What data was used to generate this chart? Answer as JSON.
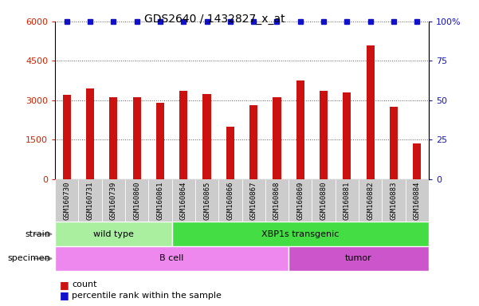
{
  "title": "GDS2640 / 1432827_x_at",
  "samples": [
    "GSM160730",
    "GSM160731",
    "GSM160739",
    "GSM160860",
    "GSM160861",
    "GSM160864",
    "GSM160865",
    "GSM160866",
    "GSM160867",
    "GSM160868",
    "GSM160869",
    "GSM160880",
    "GSM160881",
    "GSM160882",
    "GSM160883",
    "GSM160884"
  ],
  "counts": [
    3200,
    3450,
    3100,
    3100,
    2900,
    3350,
    3250,
    2000,
    2800,
    3100,
    3750,
    3350,
    3300,
    5100,
    2750,
    1350
  ],
  "ylim_left": [
    0,
    6000
  ],
  "ylim_right": [
    0,
    100
  ],
  "yticks_left": [
    0,
    1500,
    3000,
    4500,
    6000
  ],
  "yticks_right": [
    0,
    25,
    50,
    75,
    100
  ],
  "bar_color": "#cc1111",
  "percentile_color": "#1111cc",
  "strain_groups": [
    {
      "label": "wild type",
      "start": 0,
      "end": 5,
      "color": "#aaeea0"
    },
    {
      "label": "XBP1s transgenic",
      "start": 5,
      "end": 16,
      "color": "#44dd44"
    }
  ],
  "specimen_groups": [
    {
      "label": "B cell",
      "start": 0,
      "end": 10,
      "color": "#ee88ee"
    },
    {
      "label": "tumor",
      "start": 10,
      "end": 16,
      "color": "#cc55cc"
    }
  ],
  "strain_label": "strain",
  "specimen_label": "specimen",
  "legend_count": "count",
  "legend_percentile": "percentile rank within the sample",
  "tick_color_left": "#cc2200",
  "tick_color_right": "#1111cc",
  "xticklabel_bg": "#cccccc",
  "background_color": "#ffffff"
}
